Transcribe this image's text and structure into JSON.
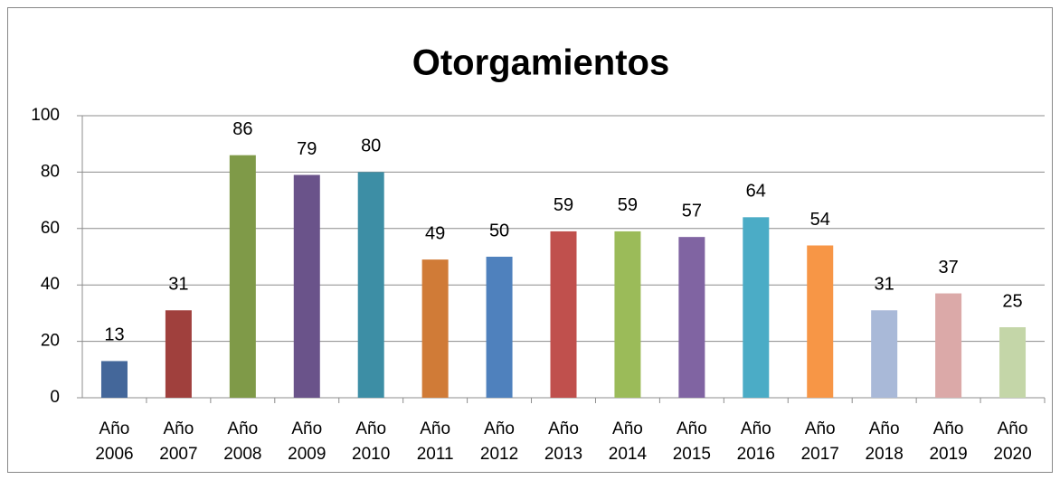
{
  "chart_data": {
    "type": "bar",
    "title": "Otorgamientos",
    "categories": [
      "Año 2006",
      "Año 2007",
      "Año 2008",
      "Año 2009",
      "Año 2010",
      "Año 2011",
      "Año 2012",
      "Año 2013",
      "Año 2014",
      "Año 2015",
      "Año 2016",
      "Año 2017",
      "Año 2018",
      "Año 2019",
      "Año 2020"
    ],
    "values": [
      13,
      31,
      86,
      79,
      80,
      49,
      50,
      59,
      59,
      57,
      64,
      54,
      31,
      37,
      25
    ],
    "colors": [
      "#44679a",
      "#a0403d",
      "#7f9a48",
      "#6a538a",
      "#3d8ea5",
      "#d07b37",
      "#4f81bd",
      "#c0504d",
      "#9bbb59",
      "#8064a2",
      "#4bacc6",
      "#f79646",
      "#a9b9d8",
      "#dba9a8",
      "#c4d6a8"
    ],
    "ylim": [
      0,
      100
    ],
    "yticks": [
      0,
      20,
      40,
      60,
      80,
      100
    ],
    "grid": true
  }
}
